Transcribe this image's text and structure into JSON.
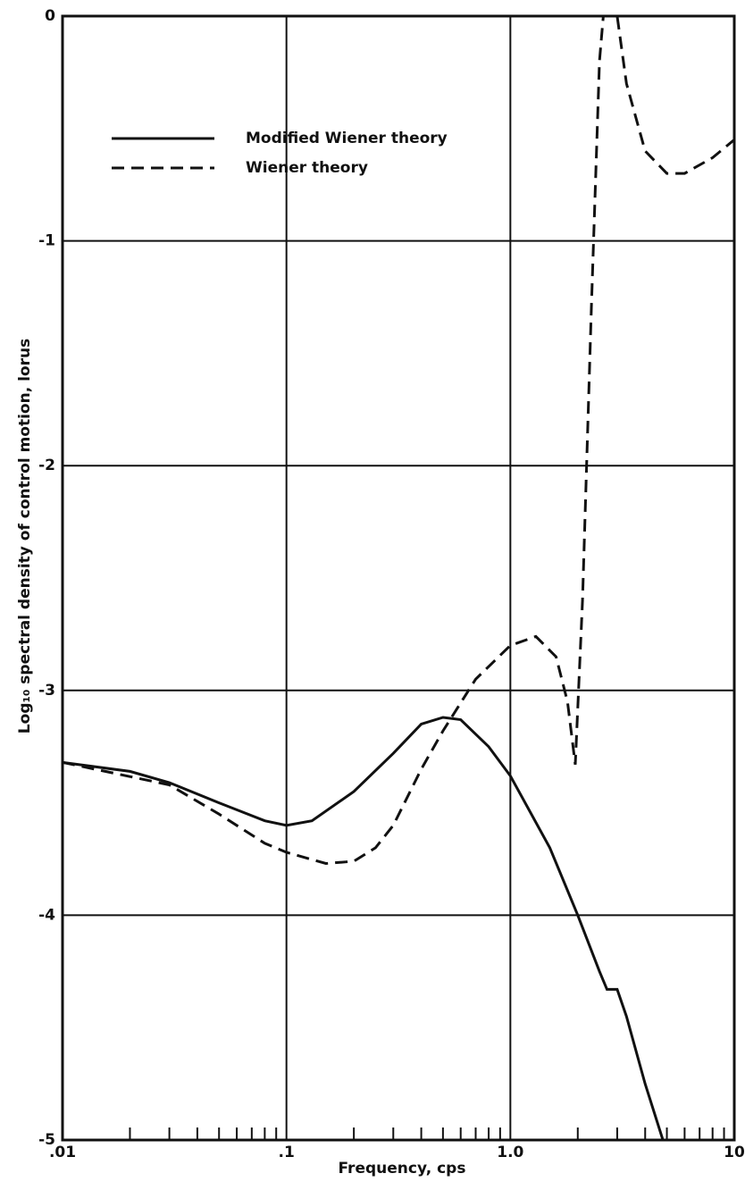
{
  "chart_data": {
    "type": "line",
    "xlabel": "Frequency, cps",
    "ylabel": "Log₁₀ spectral density of control motion, lorus",
    "xscale": "log",
    "xlim": [
      0.01,
      10
    ],
    "xticks": [
      {
        "value": 0.01,
        "label": ".01"
      },
      {
        "value": 0.1,
        "label": ".1"
      },
      {
        "value": 1,
        "label": "1.0"
      },
      {
        "value": 10,
        "label": "10"
      }
    ],
    "xminor_ticks": [
      0.02,
      0.03,
      0.04,
      0.05,
      0.06,
      0.07,
      0.08,
      0.09,
      0.2,
      0.3,
      0.4,
      0.5,
      0.6,
      0.7,
      0.8,
      0.9,
      2,
      3,
      4,
      5,
      6,
      7,
      8,
      9
    ],
    "ylim": [
      -5,
      0
    ],
    "yticks": [
      -5,
      -4,
      -3,
      -2,
      -1,
      0
    ],
    "grid": true,
    "legend": "upper-left",
    "series": [
      {
        "name": "Modified Wiener theory",
        "color": "#111111",
        "dash": "solid",
        "x": [
          0.01,
          0.02,
          0.03,
          0.05,
          0.08,
          0.1,
          0.13,
          0.2,
          0.3,
          0.4,
          0.5,
          0.6,
          0.8,
          1.0,
          1.5,
          2.0,
          2.5,
          2.7,
          3.0,
          3.3,
          4.0,
          4.8
        ],
        "values": [
          -3.32,
          -3.36,
          -3.41,
          -3.5,
          -3.58,
          -3.6,
          -3.58,
          -3.45,
          -3.28,
          -3.15,
          -3.12,
          -3.13,
          -3.25,
          -3.38,
          -3.7,
          -4.0,
          -4.25,
          -4.33,
          -4.33,
          -4.45,
          -4.75,
          -5.0
        ]
      },
      {
        "name": "Wiener theory",
        "color": "#111111",
        "dash": "dashed",
        "x": [
          0.01,
          0.03,
          0.05,
          0.08,
          0.1,
          0.15,
          0.2,
          0.25,
          0.3,
          0.4,
          0.5,
          0.7,
          1.0,
          1.3,
          1.6,
          1.8,
          1.95,
          2.1,
          2.3,
          2.5,
          2.6,
          3.0,
          3.3,
          4.0,
          5.0,
          6.0,
          8.0,
          10
        ],
        "values": [
          -3.32,
          -3.42,
          -3.55,
          -3.68,
          -3.72,
          -3.77,
          -3.76,
          -3.7,
          -3.6,
          -3.35,
          -3.18,
          -2.95,
          -2.8,
          -2.76,
          -2.85,
          -3.05,
          -3.33,
          -2.6,
          -1.3,
          -0.2,
          0,
          0,
          -0.3,
          -0.6,
          -0.7,
          -0.7,
          -0.63,
          -0.55
        ]
      }
    ]
  }
}
